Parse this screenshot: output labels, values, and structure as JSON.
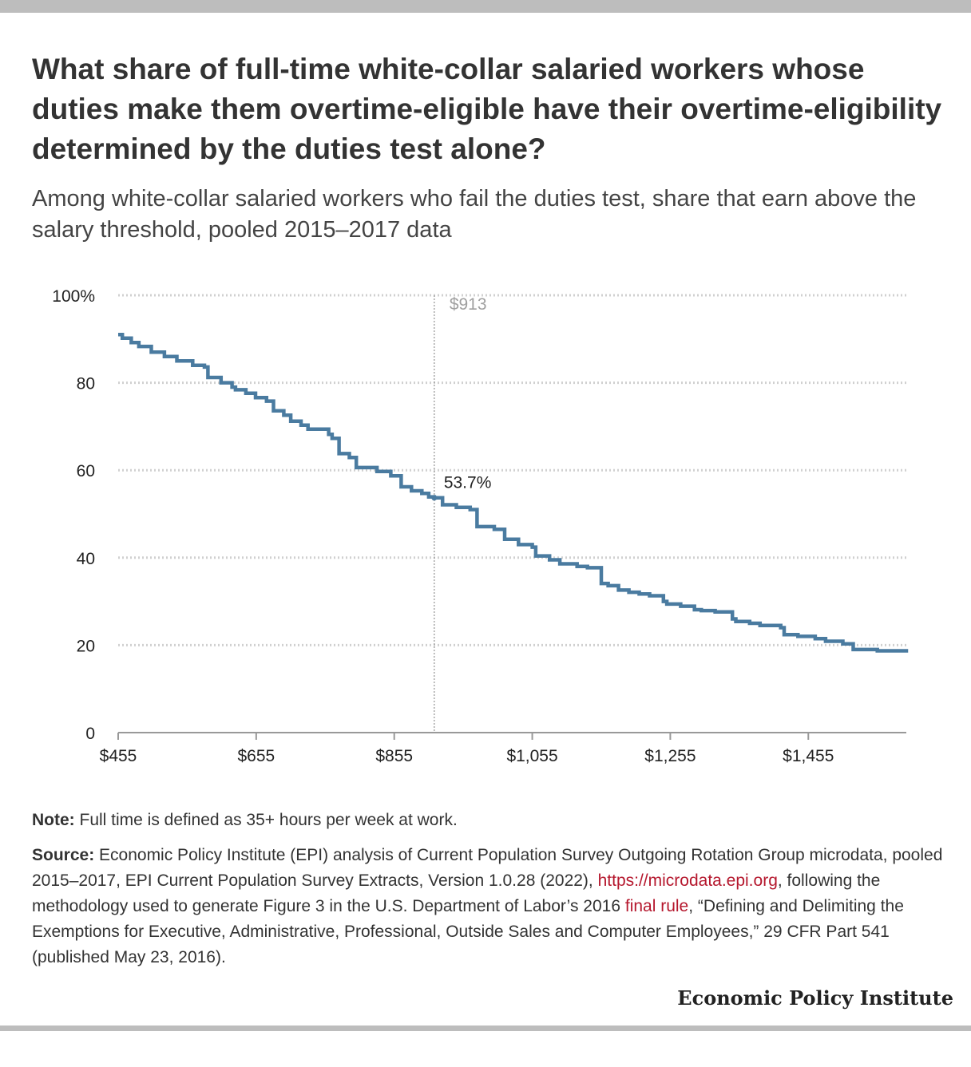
{
  "header": {
    "title": "What share of full-time white-collar salaried workers whose duties make them overtime-eligible have their overtime-eligibility determined by the duties test alone?",
    "subtitle": "Among white-collar salaried workers who fail the duties test, share that earn above the salary threshold, pooled 2015–2017 data"
  },
  "chart_data": {
    "type": "line",
    "line_style": "step",
    "xlim": [
      455,
      1597
    ],
    "ylim": [
      0,
      100
    ],
    "x_ticks": [
      455,
      655,
      855,
      1055,
      1255,
      1455
    ],
    "x_tick_labels": [
      "$455",
      "$655",
      "$855",
      "$1,055",
      "$1,255",
      "$1,455"
    ],
    "y_ticks": [
      0,
      20,
      40,
      60,
      80,
      100
    ],
    "y_tick_labels": [
      "0",
      "20",
      "40",
      "60",
      "80",
      "100%"
    ],
    "grid": "horizontal dotted",
    "reference_line": {
      "x": 913,
      "label": "$913"
    },
    "annotation": {
      "x": 913,
      "y": 53.7,
      "label": "53.7%"
    },
    "series": [
      {
        "color": "#4a7ba0",
        "x": [
          455,
          461,
          474,
          485,
          503,
          522,
          540,
          563,
          580,
          585,
          604,
          620,
          625,
          640,
          654,
          670,
          680,
          695,
          705,
          720,
          730,
          760,
          765,
          775,
          790,
          800,
          830,
          850,
          865,
          880,
          895,
          905,
          913,
          925,
          945,
          965,
          975,
          1000,
          1015,
          1035,
          1055,
          1060,
          1080,
          1095,
          1120,
          1135,
          1155,
          1165,
          1180,
          1195,
          1210,
          1225,
          1245,
          1250,
          1270,
          1290,
          1300,
          1320,
          1345,
          1350,
          1370,
          1385,
          1415,
          1420,
          1440,
          1465,
          1480,
          1505,
          1520,
          1555,
          1597
        ],
        "y": [
          91.0,
          90.2,
          89.2,
          88.3,
          87.0,
          86.0,
          85.0,
          84.0,
          83.6,
          81.2,
          80.0,
          79.0,
          78.4,
          77.6,
          76.6,
          75.8,
          73.6,
          72.6,
          71.2,
          70.3,
          69.4,
          68.2,
          67.3,
          63.8,
          62.9,
          60.6,
          59.7,
          58.7,
          56.2,
          55.3,
          54.7,
          53.9,
          53.7,
          52.1,
          51.5,
          51.0,
          47.1,
          46.5,
          44.2,
          43.0,
          42.4,
          40.4,
          39.5,
          38.6,
          38.0,
          37.7,
          34.1,
          33.6,
          32.6,
          32.1,
          31.7,
          31.3,
          30.0,
          29.4,
          28.9,
          28.1,
          27.9,
          27.6,
          26.0,
          25.4,
          25.0,
          24.5,
          24.0,
          22.4,
          22.0,
          21.5,
          20.9,
          20.3,
          19.0,
          18.7,
          18.3
        ]
      }
    ]
  },
  "footer": {
    "note_label": "Note:",
    "note_text": " Full time is defined as 35+ hours per week at work.",
    "source_label": "Source:",
    "source_text_1": " Economic Policy Institute (EPI) analysis of Current Population Survey Outgoing Rotation Group microdata, pooled 2015–2017, EPI Current Population Survey Extracts, Version 1.0.28 (2022), ",
    "source_link_1": "https://microdata.epi.org",
    "source_text_2": ", following the methodology used to generate Figure 3 in the U.S. Department of Labor’s 2016 ",
    "source_link_2": "final rule",
    "source_text_3": ", “Defining and Delimiting the Exemptions for Executive, Administrative, Professional, Outside Sales and Computer Employees,” 29 CFR Part 541 (published May 23, 2016).",
    "brand": "Economic Policy Institute"
  },
  "colors": {
    "line": "#4a7ba0",
    "grid": "#d0d0d0",
    "link": "#b5172d",
    "frame_bar": "#bdbdbd"
  }
}
